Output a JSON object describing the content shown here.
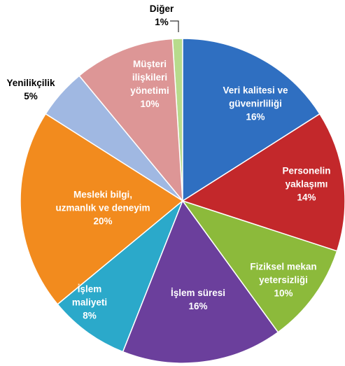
{
  "chart_data": {
    "type": "pie",
    "categories": [
      "Veri kalitesi ve güvenirliliği",
      "Personelin yaklaşımı",
      "Fiziksel mekan yetersizliği",
      "İşlem süresi",
      "İşlem maliyeti",
      "Mesleki bilgi, uzmanlık ve deneyim",
      "Yenilikçilik",
      "Müşteri ilişkileri yönetimi",
      "Diğer"
    ],
    "values": [
      16,
      14,
      10,
      16,
      8,
      20,
      5,
      10,
      1
    ],
    "value_labels": [
      "16%",
      "14%",
      "10%",
      "16%",
      "8%",
      "20%",
      "5%",
      "10%",
      "1%"
    ],
    "colors": [
      "#2f6fc1",
      "#c3282b",
      "#8cba3b",
      "#6b3f9c",
      "#2ba9ca",
      "#f28b1e",
      "#a0b8e2",
      "#dd9696",
      "#b7db8c"
    ]
  }
}
